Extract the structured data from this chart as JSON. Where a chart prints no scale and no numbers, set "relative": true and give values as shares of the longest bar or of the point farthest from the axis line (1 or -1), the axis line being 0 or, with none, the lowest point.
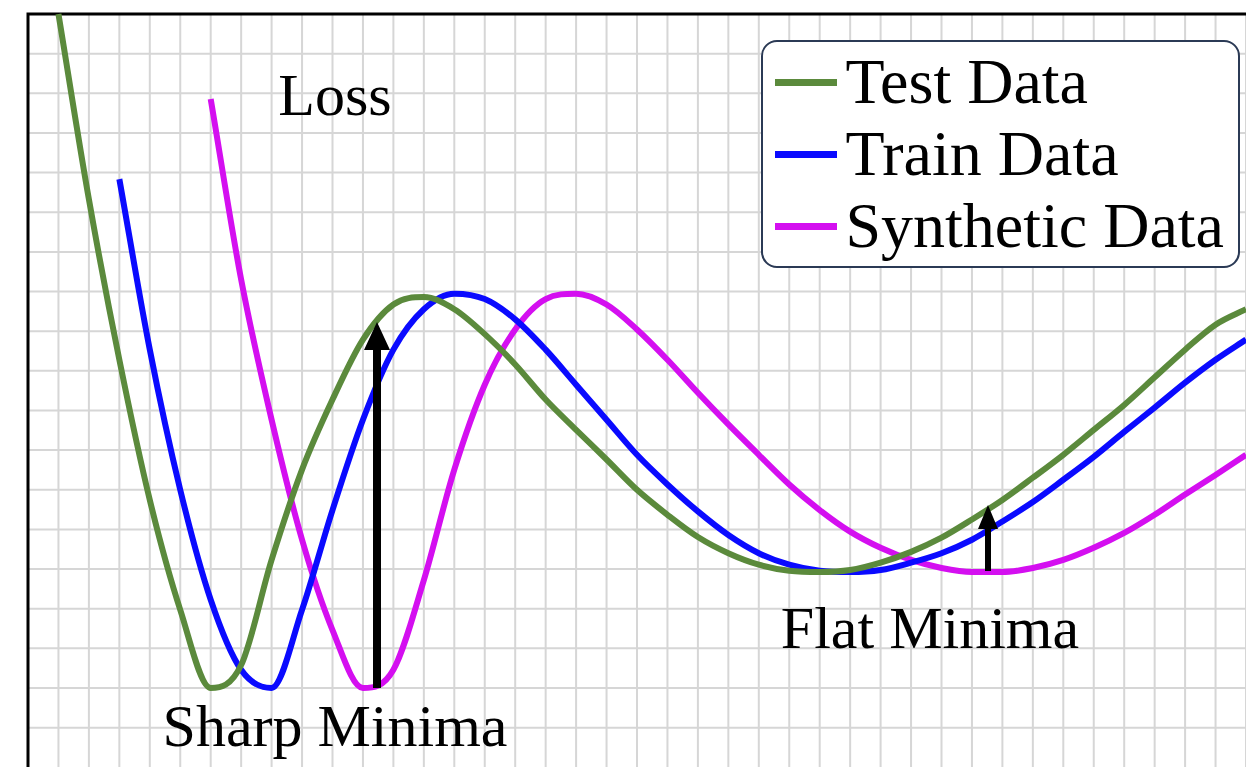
{
  "chart_data": {
    "type": "line",
    "relative": true,
    "grid": true,
    "legend": "top right",
    "marker": "none",
    "line_style": "solid",
    "categories": [
      null,
      null,
      null,
      null,
      null,
      null,
      null,
      null,
      null,
      null,
      null,
      null,
      null,
      null,
      null,
      null,
      null,
      null,
      null,
      null,
      null,
      null,
      null,
      null,
      null,
      null,
      null,
      null,
      null,
      null,
      null,
      null,
      null,
      null,
      null,
      null,
      null,
      null,
      null,
      null,
      null
    ],
    "series": [
      {
        "name": "Test Data",
        "color": "#5b8a3c",
        "values": [
          null,
          1,
          0.725,
          0.487,
          0.279,
          0.116,
          0,
          0.034,
          0.19,
          0.324,
          0.428,
          0.517,
          0.569,
          0.58,
          0.562,
          0.525,
          0.48,
          0.428,
          0.383,
          0.339,
          0.294,
          0.257,
          0.224,
          0.2,
          0.183,
          0.174,
          0.172,
          0.175,
          0.186,
          0.202,
          0.223,
          0.25,
          0.279,
          0.312,
          0.346,
          0.383,
          0.42,
          0.461,
          0.502,
          0.539,
          0.562
        ]
      },
      {
        "name": "Train Data",
        "color": "#0a0aff",
        "values": [
          null,
          null,
          null,
          0.755,
          0.502,
          0.294,
          0.131,
          0.027,
          0,
          0.116,
          0.264,
          0.398,
          0.502,
          0.562,
          0.585,
          0.577,
          0.547,
          0.502,
          0.45,
          0.398,
          0.346,
          0.302,
          0.262,
          0.227,
          0.2,
          0.183,
          0.174,
          0.172,
          0.175,
          0.186,
          0.2,
          0.22,
          0.247,
          0.276,
          0.309,
          0.343,
          0.38,
          0.416,
          0.453,
          0.487,
          0.517
        ]
      },
      {
        "name": "Synthetic Data",
        "color": "#d40ff0",
        "values": [
          null,
          null,
          null,
          null,
          null,
          null,
          0.874,
          0.606,
          0.398,
          0.22,
          0.086,
          0,
          0.027,
          0.16,
          0.324,
          0.45,
          0.532,
          0.577,
          0.585,
          0.569,
          0.532,
          0.487,
          0.438,
          0.391,
          0.346,
          0.302,
          0.264,
          0.232,
          0.208,
          0.19,
          0.178,
          0.172,
          0.172,
          0.178,
          0.19,
          0.208,
          0.23,
          0.257,
          0.287,
          0.316,
          0.346
        ]
      }
    ],
    "annotations": [
      "Loss",
      "Sharp Minima",
      "Flat Minima"
    ]
  }
}
